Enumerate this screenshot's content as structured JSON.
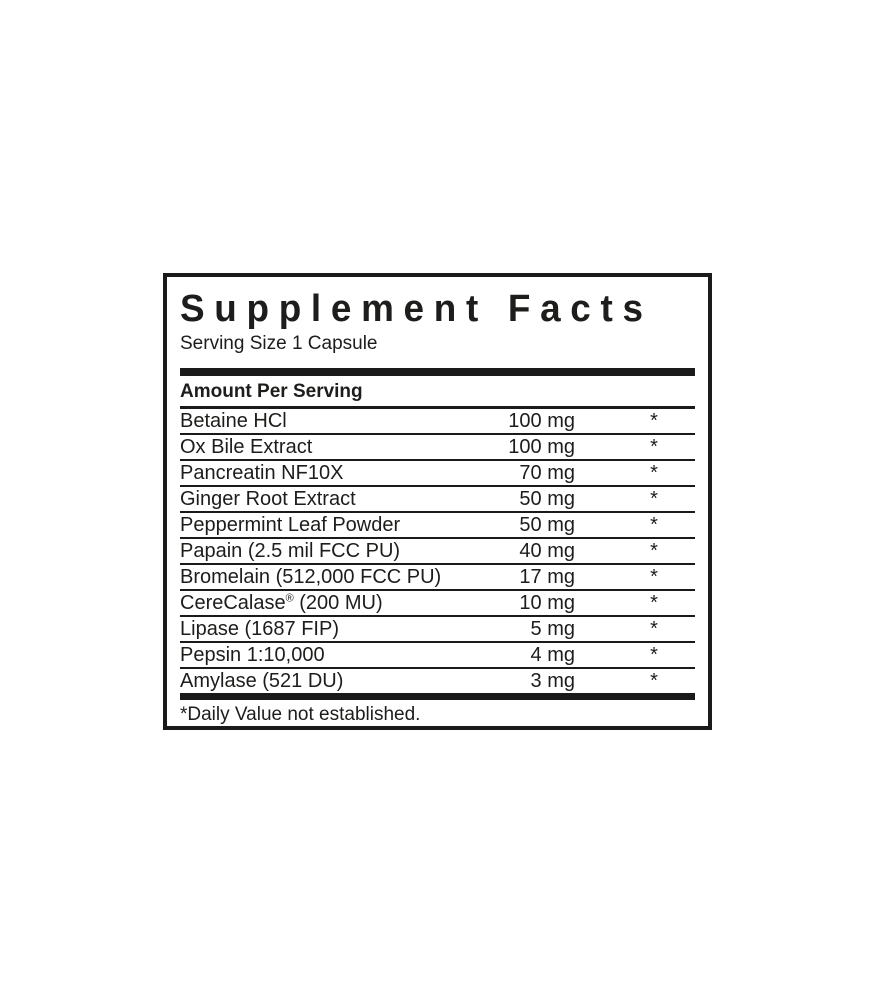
{
  "label": {
    "title": "Supplement Facts",
    "serving_size": "Serving Size 1 Capsule",
    "column_header": "Amount Per Serving",
    "rows": [
      {
        "name": "Betaine HCl",
        "amount": "100 mg",
        "dv": "*"
      },
      {
        "name": "Ox Bile Extract",
        "amount": "100 mg",
        "dv": "*"
      },
      {
        "name": "Pancreatin NF10X",
        "amount": "70 mg",
        "dv": "*"
      },
      {
        "name": "Ginger Root Extract",
        "amount": "50 mg",
        "dv": "*"
      },
      {
        "name": "Peppermint Leaf Powder",
        "amount": "50 mg",
        "dv": "*"
      },
      {
        "name": "Papain (2.5 mil FCC PU)",
        "amount": "40 mg",
        "dv": "*"
      },
      {
        "name": "Bromelain (512,000 FCC PU)",
        "amount": "17 mg",
        "dv": "*"
      },
      {
        "name": "CereCalase® (200 MU)",
        "amount": "10 mg",
        "dv": "*"
      },
      {
        "name": "Lipase (1687 FIP)",
        "amount": "5 mg",
        "dv": "*"
      },
      {
        "name": "Pepsin 1:10,000",
        "amount": "4 mg",
        "dv": "*"
      },
      {
        "name": "Amylase (521 DU)",
        "amount": "3 mg",
        "dv": "*"
      }
    ],
    "footnote": "*Daily Value not established.",
    "colors": {
      "text": "#1d1d1b",
      "rule": "#1a1a1a",
      "background": "#ffffff"
    }
  }
}
